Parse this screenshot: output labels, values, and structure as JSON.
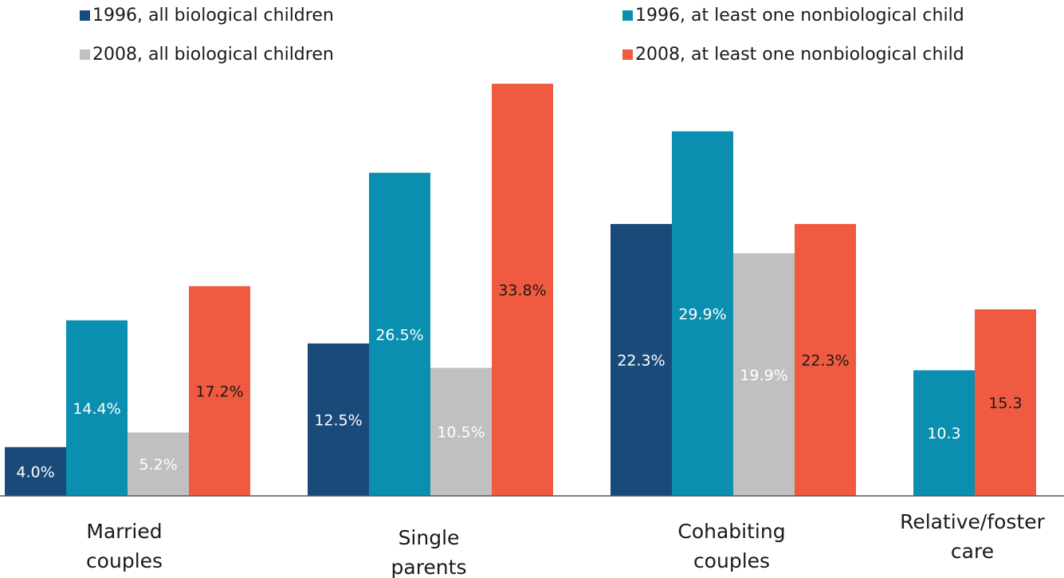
{
  "chart_data": {
    "type": "bar",
    "categories": [
      "Married couples",
      "Single parents",
      "Cohabiting couples",
      "Relative/foster care"
    ],
    "category_lines": [
      [
        "Married",
        "couples"
      ],
      [
        "Single",
        "parents"
      ],
      [
        "Cohabiting",
        "couples"
      ],
      [
        "Relative/foster",
        "care"
      ]
    ],
    "series": [
      {
        "name": "1996, all biological children",
        "color": "#1a4a7a",
        "values": [
          4.0,
          12.5,
          22.3,
          null
        ],
        "labels": [
          "4.0%",
          "12.5%",
          "22.3%",
          ""
        ],
        "label_color": "#ffffff"
      },
      {
        "name": "1996, at least one nonbiological child",
        "color": "#0a8fb0",
        "values": [
          14.4,
          26.5,
          29.9,
          10.3
        ],
        "labels": [
          "14.4%",
          "26.5%",
          "29.9%",
          "10.3"
        ],
        "label_color": "#ffffff"
      },
      {
        "name": "2008, all biological children",
        "color": "#c0c0c2",
        "values": [
          5.2,
          10.5,
          19.9,
          null
        ],
        "labels": [
          "5.2%",
          "10.5%",
          "19.9%",
          ""
        ],
        "label_color": "#ffffff"
      },
      {
        "name": "2008, at least one nonbiological child",
        "color": "#f05a40",
        "values": [
          17.2,
          33.8,
          22.3,
          15.3
        ],
        "labels": [
          "17.2%",
          "33.8%",
          "22.3%",
          "15.3"
        ],
        "label_color": "#1a1a1a"
      }
    ],
    "ylim": [
      0,
      34
    ],
    "grid": false,
    "legend_position": "top",
    "title": "",
    "xlabel": "",
    "ylabel": ""
  }
}
